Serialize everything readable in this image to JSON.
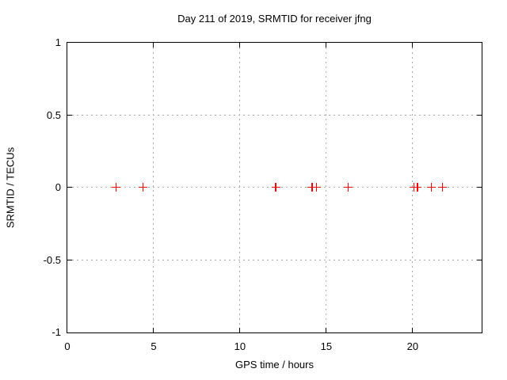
{
  "figure": {
    "title": "Day 211 of 2019, SRMTID for receiver jfng",
    "xlabel": "GPS time / hours",
    "ylabel": "SRMTID / TECUs"
  },
  "colors": {
    "background": "#ffffff",
    "border": "#000000",
    "grid": "#a8a8a8",
    "marker": "#ff0000",
    "text": "#000000"
  },
  "chart_data": {
    "type": "scatter",
    "title": "Day 211 of 2019, SRMTID for receiver jfng",
    "xlabel": "GPS time / hours",
    "ylabel": "SRMTID / TECUs",
    "xlim": [
      0,
      24
    ],
    "ylim": [
      -1,
      1
    ],
    "xticks": [
      0,
      5,
      10,
      15,
      20
    ],
    "xtick_labels": [
      "0",
      "5",
      "10",
      "15",
      "20"
    ],
    "yticks": [
      -1,
      -0.5,
      0,
      0.5,
      1
    ],
    "ytick_labels": [
      "-1",
      "-0.5",
      "0",
      "0.5",
      "1"
    ],
    "grid": true,
    "legend_position": "none",
    "marker_style": "plus",
    "series": [
      {
        "name": "SRMTID",
        "x": [
          2.85,
          4.4,
          12.1,
          14.2,
          14.45,
          16.3,
          20.1,
          20.3,
          21.1,
          21.75
        ],
        "y": [
          0,
          0,
          0,
          0,
          0,
          0,
          0,
          0,
          0,
          0
        ]
      }
    ]
  }
}
